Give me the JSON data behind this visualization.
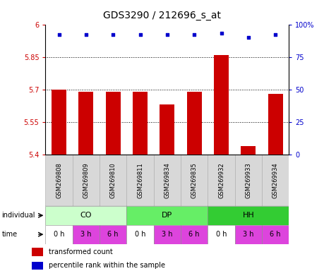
{
  "title": "GDS3290 / 212696_s_at",
  "samples": [
    "GSM269808",
    "GSM269809",
    "GSM269810",
    "GSM269811",
    "GSM269834",
    "GSM269835",
    "GSM269932",
    "GSM269933",
    "GSM269934"
  ],
  "bar_values": [
    5.7,
    5.69,
    5.69,
    5.69,
    5.63,
    5.69,
    5.86,
    5.44,
    5.68
  ],
  "percentile_values": [
    92,
    92,
    92,
    92,
    92,
    92,
    93,
    90,
    92
  ],
  "bar_color": "#cc0000",
  "dot_color": "#0000cc",
  "ylim_left": [
    5.4,
    6.0
  ],
  "ylim_right": [
    0,
    100
  ],
  "yticks_left": [
    5.4,
    5.55,
    5.7,
    5.85,
    6.0
  ],
  "ytick_labels_left": [
    "5.4",
    "5.55",
    "5.7",
    "5.85",
    "6"
  ],
  "yticks_right": [
    0,
    25,
    50,
    75,
    100
  ],
  "ytick_labels_right": [
    "0",
    "25",
    "50",
    "75",
    "100%"
  ],
  "hline_values": [
    5.55,
    5.7,
    5.85
  ],
  "individuals": [
    {
      "label": "CO",
      "color": "#ccffcc"
    },
    {
      "label": "DP",
      "color": "#66ee66"
    },
    {
      "label": "HH",
      "color": "#33cc33"
    }
  ],
  "times": [
    "0 h",
    "3 h",
    "6 h",
    "0 h",
    "3 h",
    "6 h",
    "0 h",
    "3 h",
    "6 h"
  ],
  "time_bg_colors": [
    "#ffffff",
    "#dd44dd",
    "#dd44dd",
    "#ffffff",
    "#dd44dd",
    "#dd44dd",
    "#ffffff",
    "#dd44dd",
    "#dd44dd"
  ],
  "bar_width": 0.55,
  "background_color": "#ffffff",
  "tick_fontsize": 7,
  "title_fontsize": 10,
  "sample_fontsize": 6,
  "ind_fontsize": 8,
  "time_fontsize": 7,
  "legend_fontsize": 7
}
